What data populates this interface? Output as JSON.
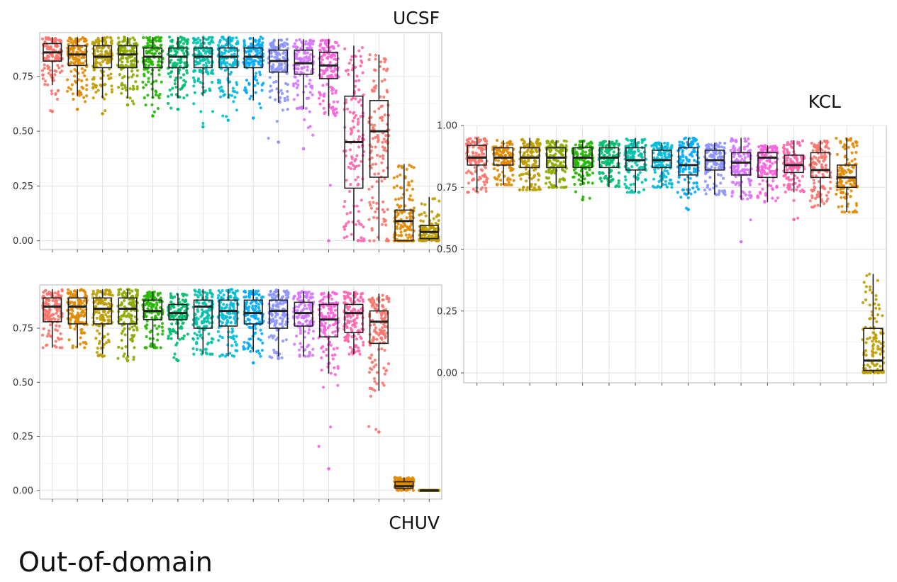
{
  "figure_title": "Out-of-domain",
  "colors": [
    "#F8766D",
    "#E18A00",
    "#BE9C00",
    "#8CAB00",
    "#24B700",
    "#00BE70",
    "#00C1AB",
    "#00BBDA",
    "#00ACFC",
    "#8B93FF",
    "#D575FE",
    "#F962DD",
    "#FF65AC"
  ],
  "chart_data": [
    {
      "type": "box",
      "panel_title": "UCSF",
      "ylim": [
        -0.04,
        0.95
      ],
      "yticks": [
        "0.00",
        "0.25",
        "0.50",
        "0.75"
      ],
      "grid": true,
      "series": [
        {
          "q1": 0.82,
          "median": 0.86,
          "q3": 0.9,
          "whisker_low": 0.71,
          "whisker_high": 0.93,
          "min": 0.59
        },
        {
          "q1": 0.8,
          "median": 0.85,
          "q3": 0.89,
          "whisker_low": 0.66,
          "whisker_high": 0.93,
          "min": 0.6
        },
        {
          "q1": 0.79,
          "median": 0.84,
          "q3": 0.89,
          "whisker_low": 0.65,
          "whisker_high": 0.93,
          "min": 0.58
        },
        {
          "q1": 0.79,
          "median": 0.85,
          "q3": 0.89,
          "whisker_low": 0.65,
          "whisker_high": 0.93,
          "min": 0.62
        },
        {
          "q1": 0.79,
          "median": 0.84,
          "q3": 0.88,
          "whisker_low": 0.65,
          "whisker_high": 0.93,
          "min": 0.57
        },
        {
          "q1": 0.79,
          "median": 0.84,
          "q3": 0.88,
          "whisker_low": 0.65,
          "whisker_high": 0.93,
          "min": 0.6
        },
        {
          "q1": 0.79,
          "median": 0.84,
          "q3": 0.88,
          "whisker_low": 0.66,
          "whisker_high": 0.93,
          "min": 0.52
        },
        {
          "q1": 0.79,
          "median": 0.84,
          "q3": 0.88,
          "whisker_low": 0.65,
          "whisker_high": 0.93,
          "min": 0.55
        },
        {
          "q1": 0.79,
          "median": 0.84,
          "q3": 0.88,
          "whisker_low": 0.64,
          "whisker_high": 0.93,
          "min": 0.56
        },
        {
          "q1": 0.77,
          "median": 0.82,
          "q3": 0.87,
          "whisker_low": 0.63,
          "whisker_high": 0.92,
          "min": 0.45
        },
        {
          "q1": 0.76,
          "median": 0.81,
          "q3": 0.87,
          "whisker_low": 0.6,
          "whisker_high": 0.92,
          "min": 0.42
        },
        {
          "q1": 0.74,
          "median": 0.8,
          "q3": 0.86,
          "whisker_low": 0.57,
          "whisker_high": 0.92,
          "min": 0.0
        },
        {
          "q1": 0.24,
          "median": 0.45,
          "q3": 0.66,
          "whisker_low": 0.0,
          "whisker_high": 0.89,
          "min": 0.0
        },
        {
          "q1": 0.29,
          "median": 0.5,
          "q3": 0.64,
          "whisker_low": 0.0,
          "whisker_high": 0.85,
          "min": 0.0
        },
        {
          "q1": 0.0,
          "median": 0.09,
          "q3": 0.14,
          "whisker_low": 0.0,
          "whisker_high": 0.35,
          "min": 0.0
        },
        {
          "q1": 0.01,
          "median": 0.04,
          "q3": 0.07,
          "whisker_low": 0.0,
          "whisker_high": 0.2,
          "min": 0.0
        }
      ]
    },
    {
      "type": "box",
      "panel_title": "CHUV",
      "ylim": [
        -0.04,
        0.95
      ],
      "yticks": [
        "0.00",
        "0.25",
        "0.50",
        "0.75"
      ],
      "grid": true,
      "series": [
        {
          "q1": 0.78,
          "median": 0.85,
          "q3": 0.89,
          "whisker_low": 0.66,
          "whisker_high": 0.93,
          "min": 0.66
        },
        {
          "q1": 0.77,
          "median": 0.85,
          "q3": 0.89,
          "whisker_low": 0.66,
          "whisker_high": 0.93,
          "min": 0.66
        },
        {
          "q1": 0.77,
          "median": 0.84,
          "q3": 0.89,
          "whisker_low": 0.63,
          "whisker_high": 0.93,
          "min": 0.62
        },
        {
          "q1": 0.77,
          "median": 0.84,
          "q3": 0.89,
          "whisker_low": 0.62,
          "whisker_high": 0.93,
          "min": 0.6
        },
        {
          "q1": 0.79,
          "median": 0.83,
          "q3": 0.88,
          "whisker_low": 0.66,
          "whisker_high": 0.92,
          "min": 0.66
        },
        {
          "q1": 0.79,
          "median": 0.82,
          "q3": 0.86,
          "whisker_low": 0.7,
          "whisker_high": 0.91,
          "min": 0.6
        },
        {
          "q1": 0.75,
          "median": 0.85,
          "q3": 0.88,
          "whisker_low": 0.63,
          "whisker_high": 0.93,
          "min": 0.63
        },
        {
          "q1": 0.76,
          "median": 0.83,
          "q3": 0.88,
          "whisker_low": 0.62,
          "whisker_high": 0.93,
          "min": 0.62
        },
        {
          "q1": 0.77,
          "median": 0.82,
          "q3": 0.88,
          "whisker_low": 0.64,
          "whisker_high": 0.93,
          "min": 0.59
        },
        {
          "q1": 0.75,
          "median": 0.83,
          "q3": 0.88,
          "whisker_low": 0.62,
          "whisker_high": 0.93,
          "min": 0.61
        },
        {
          "q1": 0.76,
          "median": 0.82,
          "q3": 0.87,
          "whisker_low": 0.62,
          "whisker_high": 0.92,
          "min": 0.62
        },
        {
          "q1": 0.71,
          "median": 0.79,
          "q3": 0.86,
          "whisker_low": 0.54,
          "whisker_high": 0.92,
          "min": 0.1
        },
        {
          "q1": 0.73,
          "median": 0.82,
          "q3": 0.86,
          "whisker_low": 0.63,
          "whisker_high": 0.92,
          "min": 0.63
        },
        {
          "q1": 0.68,
          "median": 0.78,
          "q3": 0.83,
          "whisker_low": 0.46,
          "whisker_high": 0.91,
          "min": 0.27
        },
        {
          "q1": 0.01,
          "median": 0.02,
          "q3": 0.04,
          "whisker_low": 0.0,
          "whisker_high": 0.06,
          "min": 0.0
        },
        {
          "q1": 0.0,
          "median": 0.0,
          "q3": 0.0,
          "whisker_low": 0.0,
          "whisker_high": 0.0,
          "min": 0.0
        }
      ]
    },
    {
      "type": "box",
      "panel_title": "KCL",
      "ylim": [
        -0.04,
        1.0
      ],
      "yticks": [
        "0.00",
        "0.25",
        "0.50",
        "0.75",
        "1.00"
      ],
      "grid": true,
      "series": [
        {
          "q1": 0.84,
          "median": 0.87,
          "q3": 0.92,
          "whisker_low": 0.73,
          "whisker_high": 0.95,
          "min": 0.73
        },
        {
          "q1": 0.84,
          "median": 0.87,
          "q3": 0.91,
          "whisker_low": 0.76,
          "whisker_high": 0.94,
          "min": 0.76
        },
        {
          "q1": 0.83,
          "median": 0.87,
          "q3": 0.91,
          "whisker_low": 0.74,
          "whisker_high": 0.95,
          "min": 0.74
        },
        {
          "q1": 0.83,
          "median": 0.87,
          "q3": 0.91,
          "whisker_low": 0.75,
          "whisker_high": 0.94,
          "min": 0.75
        },
        {
          "q1": 0.83,
          "median": 0.87,
          "q3": 0.91,
          "whisker_low": 0.76,
          "whisker_high": 0.94,
          "min": 0.7
        },
        {
          "q1": 0.83,
          "median": 0.87,
          "q3": 0.91,
          "whisker_low": 0.75,
          "whisker_high": 0.94,
          "min": 0.75
        },
        {
          "q1": 0.82,
          "median": 0.86,
          "q3": 0.91,
          "whisker_low": 0.73,
          "whisker_high": 0.95,
          "min": 0.73
        },
        {
          "q1": 0.83,
          "median": 0.86,
          "q3": 0.9,
          "whisker_low": 0.75,
          "whisker_high": 0.93,
          "min": 0.75
        },
        {
          "q1": 0.8,
          "median": 0.84,
          "q3": 0.91,
          "whisker_low": 0.72,
          "whisker_high": 0.95,
          "min": 0.66
        },
        {
          "q1": 0.82,
          "median": 0.86,
          "q3": 0.9,
          "whisker_low": 0.72,
          "whisker_high": 0.93,
          "min": 0.72
        },
        {
          "q1": 0.8,
          "median": 0.85,
          "q3": 0.89,
          "whisker_low": 0.7,
          "whisker_high": 0.95,
          "min": 0.53
        },
        {
          "q1": 0.79,
          "median": 0.87,
          "q3": 0.89,
          "whisker_low": 0.69,
          "whisker_high": 0.92,
          "min": 0.69
        },
        {
          "q1": 0.81,
          "median": 0.84,
          "q3": 0.88,
          "whisker_low": 0.73,
          "whisker_high": 0.94,
          "min": 0.62
        },
        {
          "q1": 0.79,
          "median": 0.82,
          "q3": 0.89,
          "whisker_low": 0.67,
          "whisker_high": 0.94,
          "min": 0.67
        },
        {
          "q1": 0.75,
          "median": 0.79,
          "q3": 0.84,
          "whisker_low": 0.65,
          "whisker_high": 0.95,
          "min": 0.65
        },
        {
          "q1": 0.01,
          "median": 0.05,
          "q3": 0.18,
          "whisker_low": 0.0,
          "whisker_high": 0.4,
          "min": 0.0
        }
      ]
    }
  ]
}
